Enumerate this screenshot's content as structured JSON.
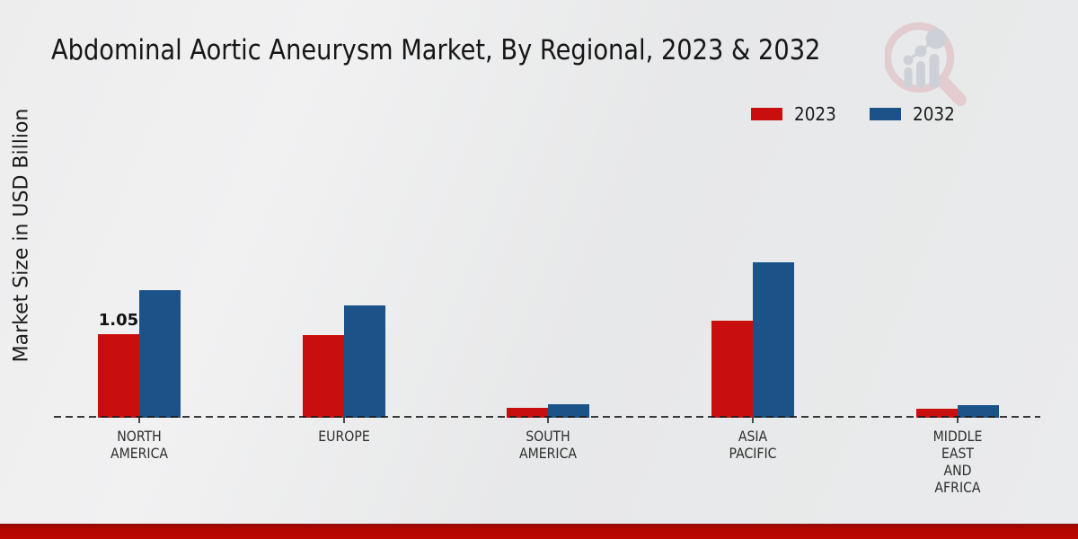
{
  "page": {
    "title": "Abdominal Aortic Aneurysm Market, By Regional, 2023 & 2032"
  },
  "y_axis": {
    "label": "Market Size in USD Billion"
  },
  "legend": {
    "items": [
      {
        "label": "2023",
        "color": "#c90f0e"
      },
      {
        "label": "2032",
        "color": "#1b5288"
      }
    ]
  },
  "colors": {
    "series_2023": "#c90f0e",
    "series_2032": "#1b5288",
    "baseline": "#1a1a1a",
    "bottom_accent": "#b40600",
    "background": "#ebebec"
  },
  "chart_data": {
    "type": "bar",
    "title": "Abdominal Aortic Aneurysm Market, By Regional, 2023 & 2032",
    "xlabel": "",
    "ylabel": "Market Size in USD Billion",
    "categories": [
      "NORTH\nAMERICA",
      "EUROPE",
      "SOUTH\nAMERICA",
      "ASIA\nPACIFIC",
      "MIDDLE\nEAST\nAND\nAFRICA"
    ],
    "series": [
      {
        "name": "2023",
        "color": "#c90f0e",
        "values": [
          1.05,
          1.03,
          0.12,
          1.21,
          0.11
        ]
      },
      {
        "name": "2032",
        "color": "#1b5288",
        "values": [
          1.6,
          1.4,
          0.17,
          1.94,
          0.16
        ]
      }
    ],
    "annotations": [
      {
        "text": "1.05",
        "category_index": 0,
        "series_index": 0
      }
    ],
    "grid": false,
    "axis_line": "dashed-baseline",
    "legend_position": "top-right"
  }
}
